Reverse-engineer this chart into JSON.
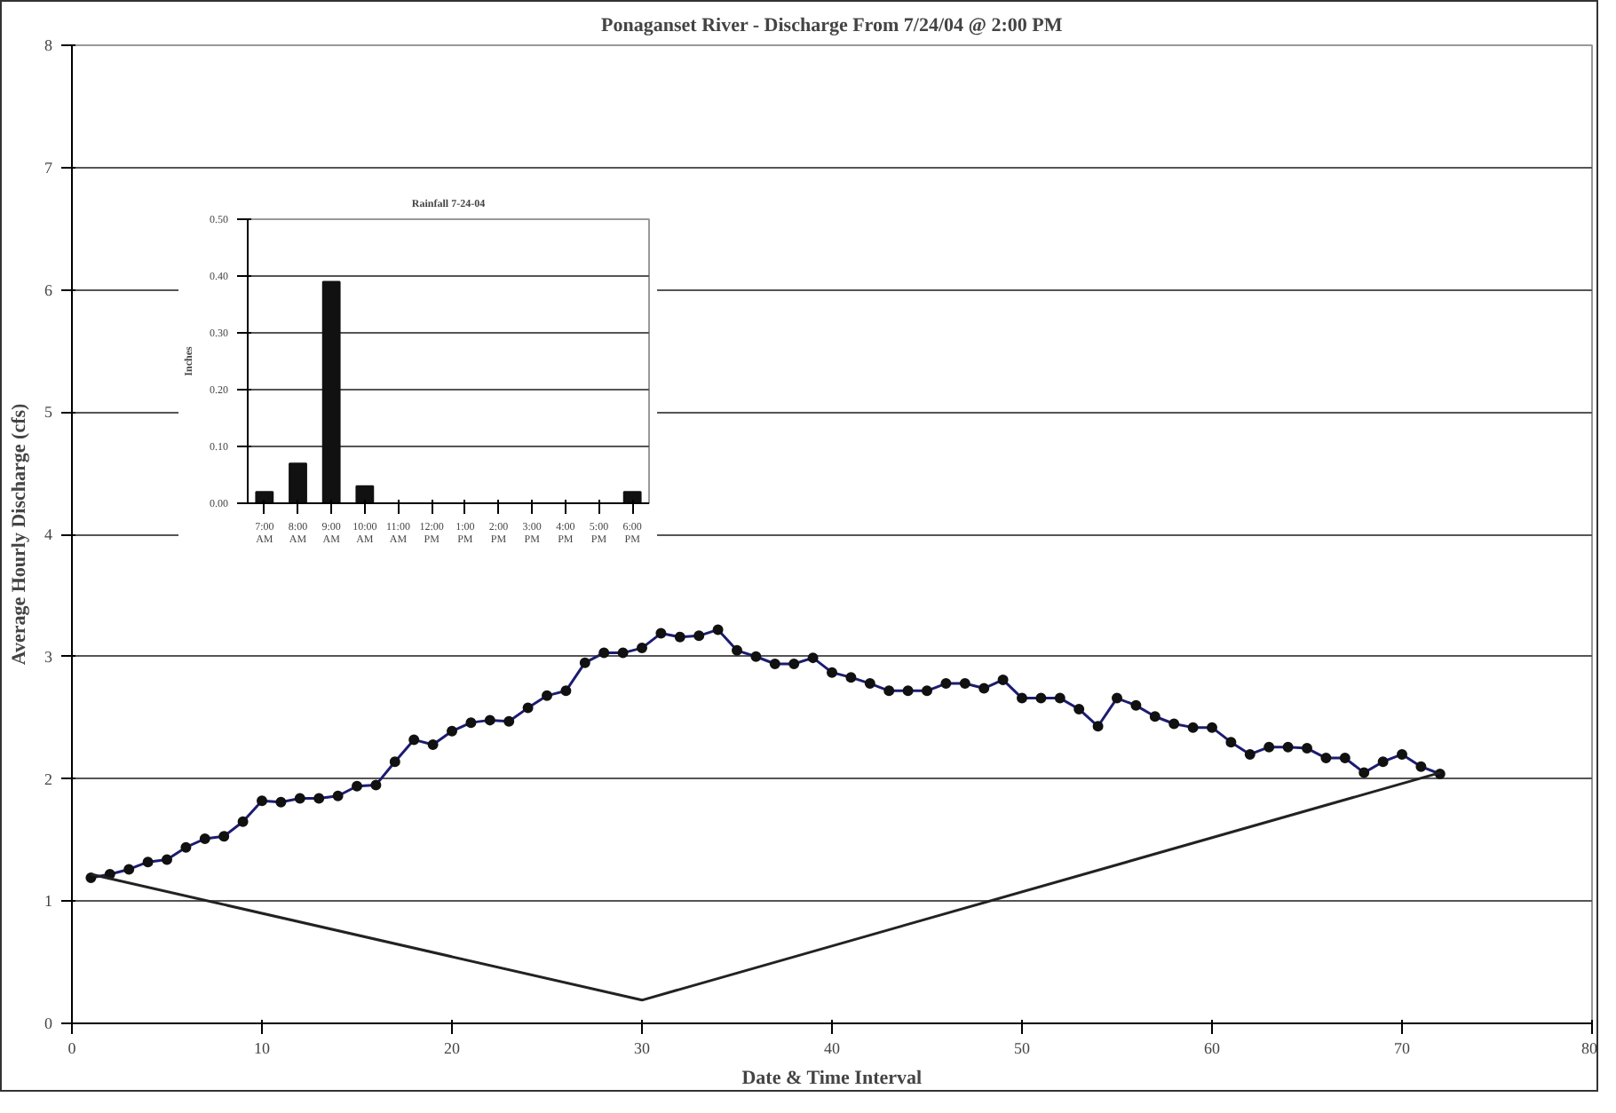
{
  "chart_data": [
    {
      "type": "line",
      "title": "Ponaganset River - Discharge From 7/24/04 @ 2:00 PM",
      "xlabel": "Date & Time Interval",
      "ylabel": "Average Hourly Discharge (cfs)",
      "xlim": [
        0,
        80
      ],
      "xticks": [
        0,
        10,
        20,
        30,
        40,
        50,
        60,
        70,
        80
      ],
      "ylim": [
        0,
        8
      ],
      "yticks": [
        0,
        1,
        2,
        3,
        4,
        5,
        6,
        7,
        8
      ],
      "grid": "y",
      "series": [
        {
          "color": "#1c1c70",
          "marker": "circle",
          "x": [
            1,
            2,
            3,
            4,
            5,
            6,
            7,
            8,
            9,
            10,
            11,
            12,
            13,
            14,
            15,
            16,
            17,
            18,
            19,
            20,
            21,
            22,
            23,
            24,
            25,
            26,
            27,
            28,
            29,
            30,
            31,
            32,
            33,
            34,
            35,
            36,
            37,
            38,
            39,
            40,
            41,
            42,
            43,
            44,
            45,
            46,
            47,
            48,
            49,
            50,
            51,
            52,
            53,
            54,
            55,
            56,
            57,
            58,
            59,
            60,
            61,
            62,
            63,
            64,
            65,
            66,
            67,
            68,
            69,
            70,
            71,
            72
          ],
          "values": [
            1.19,
            1.22,
            1.26,
            1.32,
            1.34,
            1.44,
            1.51,
            1.53,
            1.65,
            1.82,
            1.81,
            1.84,
            1.84,
            1.86,
            1.94,
            1.95,
            2.14,
            2.32,
            2.28,
            2.39,
            2.46,
            2.48,
            2.47,
            2.58,
            2.68,
            2.72,
            2.95,
            3.03,
            3.03,
            3.07,
            3.19,
            3.16,
            3.17,
            3.22,
            3.05,
            3.0,
            2.94,
            2.94,
            2.99,
            2.87,
            2.83,
            2.78,
            2.72,
            2.72,
            2.72,
            2.78,
            2.78,
            2.74,
            2.81,
            2.66,
            2.66,
            2.66,
            2.57,
            2.43,
            2.66,
            2.6,
            2.51,
            2.45,
            2.42,
            2.42,
            2.3,
            2.2,
            2.26,
            2.26,
            2.25,
            2.17,
            2.17,
            2.05,
            2.14,
            2.2,
            2.1,
            2.04
          ]
        },
        {
          "color": "#222222",
          "marker": "none",
          "x": [
            1,
            30,
            72
          ],
          "values": [
            1.22,
            0.19,
            2.05
          ]
        }
      ]
    },
    {
      "type": "bar",
      "title": "Rainfall 7-24-04",
      "ylabel": "Inches",
      "categories": [
        "7:00 AM",
        "8:00 AM",
        "9:00 AM",
        "10:00 AM",
        "11:00 AM",
        "12:00 PM",
        "1:00 PM",
        "2:00 PM",
        "3:00 PM",
        "4:00 PM",
        "5:00 PM",
        "6:00 PM"
      ],
      "values": [
        0.02,
        0.07,
        0.39,
        0.03,
        0,
        0,
        0,
        0,
        0,
        0,
        0,
        0.02
      ],
      "color": "#111111",
      "ylim": [
        0,
        0.5
      ],
      "yticks": [
        {
          "value": 0,
          "label": "0.00"
        },
        {
          "value": 0.1,
          "label": "0.10"
        },
        {
          "value": 0.2,
          "label": "0.20"
        },
        {
          "value": 0.3,
          "label": "0.30"
        },
        {
          "value": 0.4,
          "label": "0.40"
        },
        {
          "value": 0.5,
          "label": "0.50"
        }
      ],
      "grid": "y"
    }
  ]
}
